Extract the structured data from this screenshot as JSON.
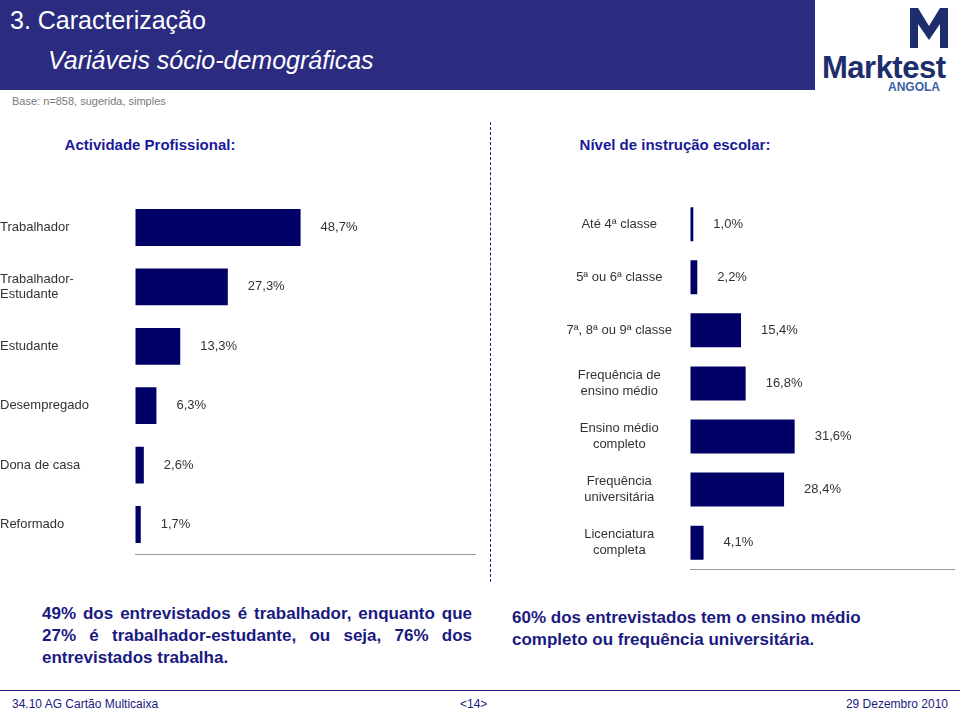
{
  "page": {
    "header_title": "3. Caracterização",
    "header_subtitle": "Variáveis sócio-demográficas",
    "logo": "Marktest",
    "logo_sub": "ANGOLA",
    "base": "Base: n=858, sugerida, simples",
    "notes": [
      "49% dos entrevistados é trabalhador, enquanto que 27% é trabalhador-estudante, ou seja, 76% dos entrevistados trabalha.",
      "60% dos entrevistados tem o ensino médio completo ou frequência universitária."
    ],
    "footer": [
      "34.10 AG Cartão Multicaixa",
      "<14>",
      "29 Dezembro 2010"
    ]
  },
  "chart_data": [
    {
      "type": "bar",
      "title": "Actividade Profissional:",
      "orientation": "horizontal",
      "categories": [
        "Trabalhador",
        "Trabalhador-Estudante",
        "Estudante",
        "Desempregado",
        "Dona de casa",
        "Reformado"
      ],
      "values": [
        48.7,
        27.3,
        13.3,
        6.3,
        2.6,
        1.7
      ],
      "value_labels": [
        "48,7%",
        "27,3%",
        "13,3%",
        "6,3%",
        "2,6%",
        "1,7%"
      ],
      "color": "#000066",
      "xlim": [
        0,
        100
      ],
      "data_labels": true,
      "tick_labels": "y",
      "grid": false
    },
    {
      "type": "bar",
      "title": "Nível de instrução escolar:",
      "orientation": "horizontal",
      "categories": [
        "Até 4ª classe",
        "5ª ou 6ª classe",
        "7ª, 8ª ou 9ª classe",
        "Frequência de ensino médio",
        "Ensino médio completo",
        "Frequência universitária",
        "Licenciatura completa"
      ],
      "values": [
        1.0,
        2.2,
        15.4,
        16.8,
        31.6,
        28.4,
        4.1
      ],
      "value_labels": [
        "1,0%",
        "2,2%",
        "15,4%",
        "16,8%",
        "31,6%",
        "28,4%",
        "4,1%"
      ],
      "color": "#000066",
      "xlim": [
        0,
        80
      ],
      "data_labels": true,
      "tick_labels": "y",
      "grid": false
    }
  ]
}
